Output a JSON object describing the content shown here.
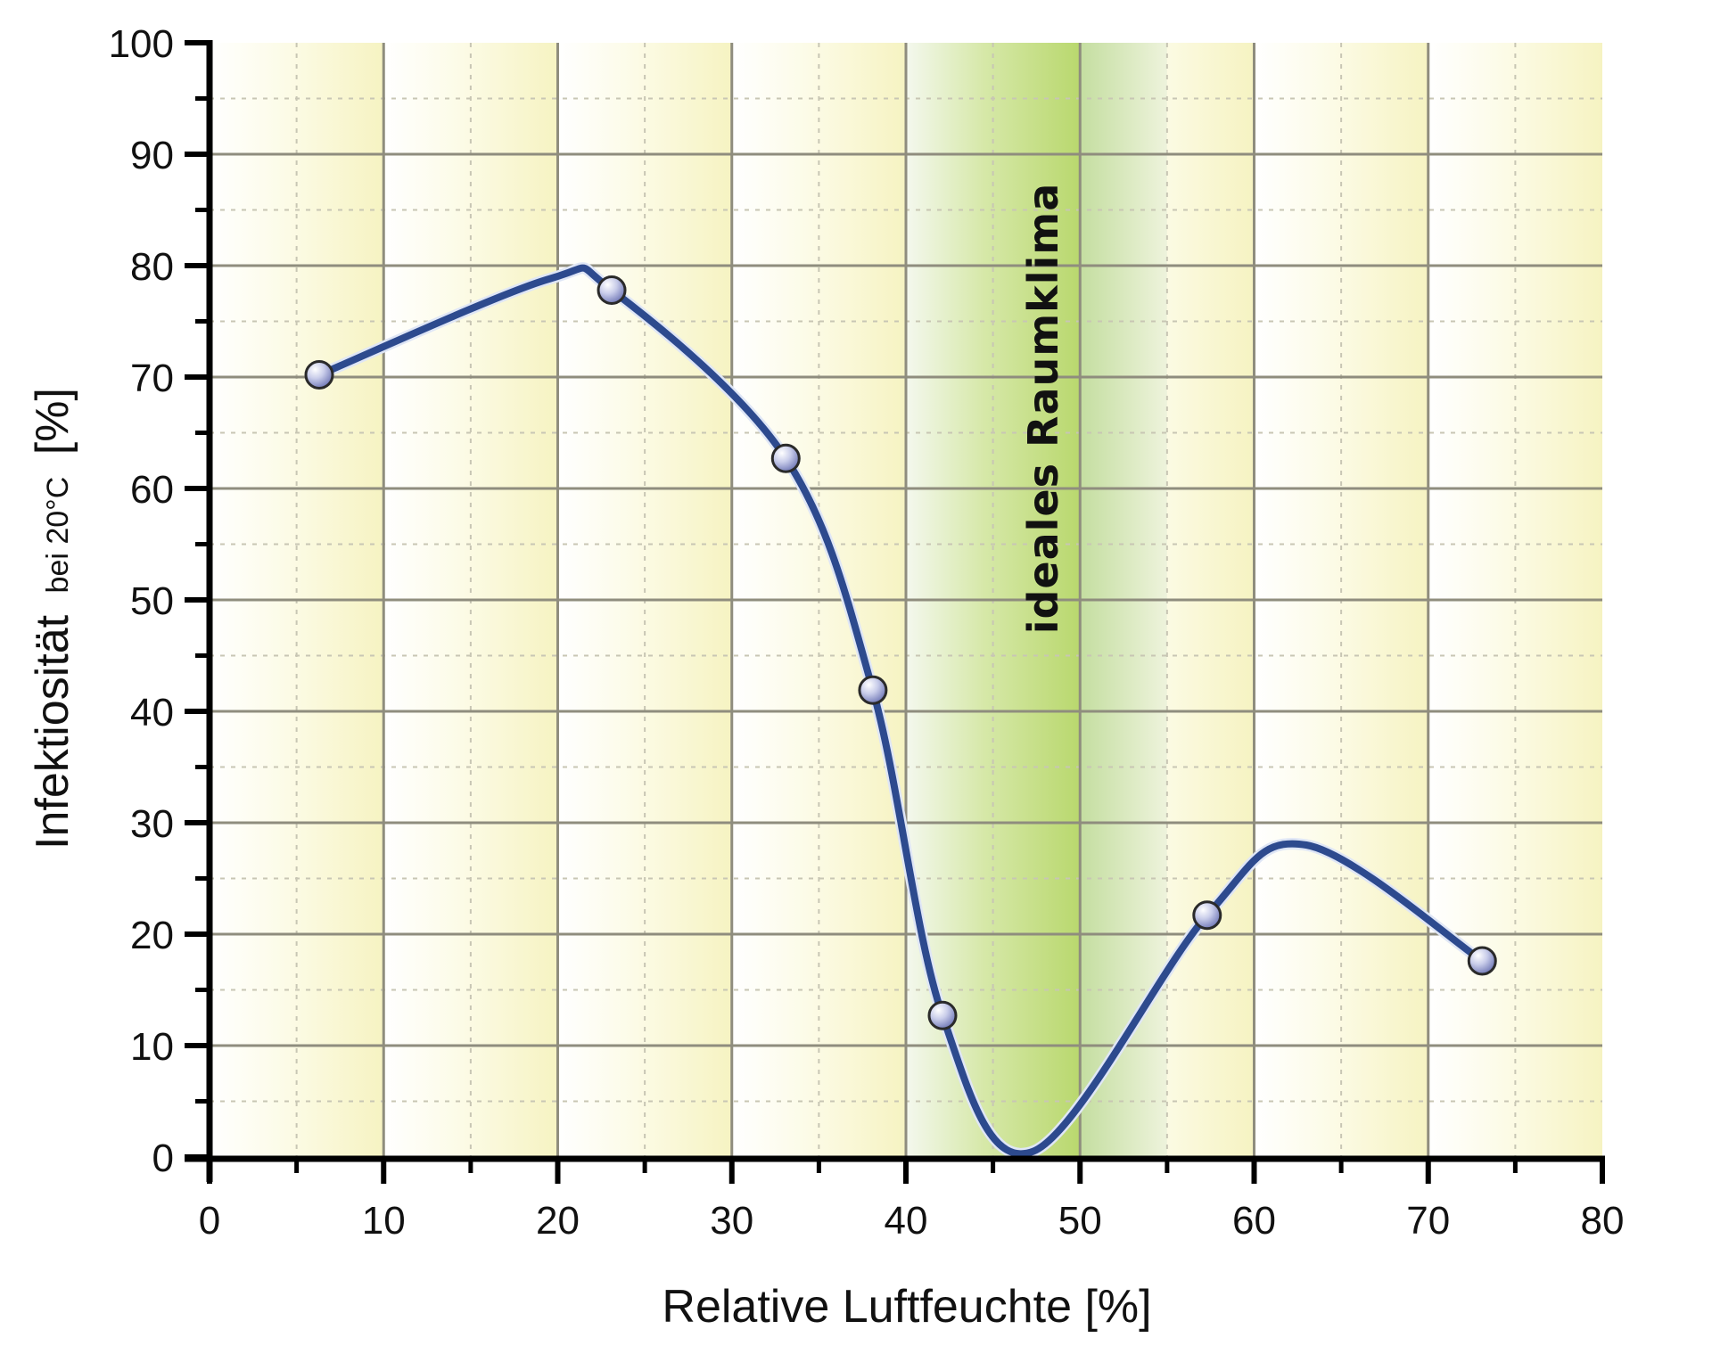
{
  "chart_data": {
    "type": "line",
    "title": "",
    "xlabel": "Relative Luftfeuchte [%]",
    "ylabel": "Infektiosität bei 20°C [%]",
    "ylabel_main": "Infektiosität",
    "ylabel_sub": "bei 20°C",
    "ylabel_unit": "[%]",
    "xlim": [
      0,
      80
    ],
    "ylim": [
      0,
      100
    ],
    "x_ticks": [
      0,
      10,
      20,
      30,
      40,
      50,
      60,
      70,
      80
    ],
    "y_ticks": [
      0,
      10,
      20,
      30,
      40,
      50,
      60,
      70,
      80,
      90,
      100
    ],
    "grid": true,
    "legend": null,
    "series": [
      {
        "name": "Infektiosität",
        "color": "#2d4a8e",
        "marker": "circle",
        "smoothed": true,
        "x": [
          6.3,
          23.1,
          33.1,
          38.1,
          42.1,
          57.3,
          73.1
        ],
        "y": [
          70.2,
          77.8,
          62.7,
          41.9,
          12.7,
          21.7,
          17.6
        ]
      }
    ],
    "curve_features": {
      "local_max_1": {
        "x": 19.5,
        "y": 78.8
      },
      "local_min": {
        "x": 47.3,
        "y": 0.5
      },
      "local_max_2": {
        "x": 63.0,
        "y": 28.0
      }
    },
    "annotations": [
      {
        "text": "ideales Raumklima",
        "orientation": "vertical",
        "x": 48.5,
        "y_range": [
          52,
          96
        ]
      }
    ],
    "highlight_band": {
      "x_range": [
        40,
        55
      ],
      "color": "#b8d870",
      "label": "ideales Raumklima"
    },
    "background_band_color": "#f7f4c4"
  }
}
